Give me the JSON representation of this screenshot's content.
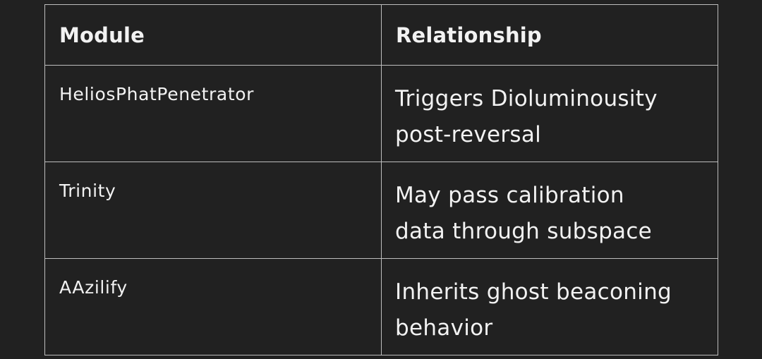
{
  "table": {
    "headers": {
      "module": "Module",
      "relationship": "Relationship"
    },
    "rows": [
      {
        "module": "HeliosPhatPenetrator",
        "relationship": "Triggers Dioluminousity post-reversal"
      },
      {
        "module": "Trinity",
        "relationship": "May pass calibration data through subspace"
      },
      {
        "module": "AAzilify",
        "relationship": "Inherits ghost beaconing behavior"
      }
    ]
  },
  "colors": {
    "background": "#212121",
    "border": "#bdbdbd",
    "text": "#f2f2f2"
  }
}
